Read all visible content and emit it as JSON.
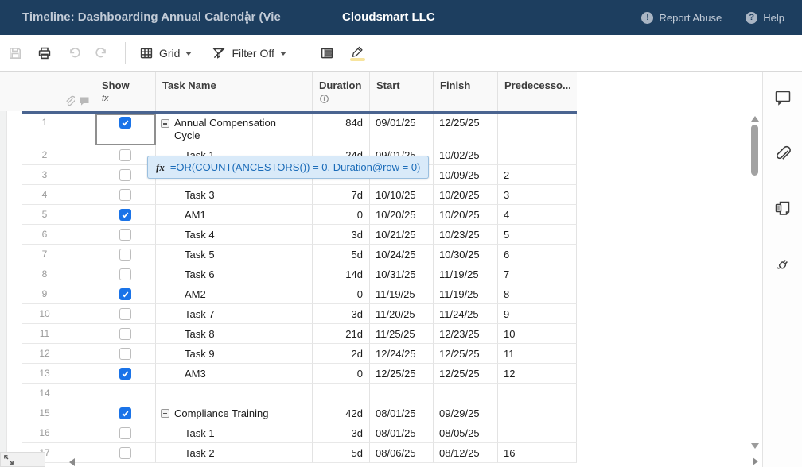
{
  "header": {
    "title": "Timeline: Dashboarding Annual Calendar (Vie",
    "company": "Cloudsmart LLC",
    "report_abuse_label": "Report Abuse",
    "report_abuse_glyph": "!",
    "help_label": "Help",
    "help_glyph": "?"
  },
  "toolbar": {
    "view_label": "Grid",
    "filter_label": "Filter Off"
  },
  "columns": {
    "show": "Show",
    "show_sub": "fx",
    "task": "Task Name",
    "duration": "Duration",
    "start": "Start",
    "finish": "Finish",
    "predecessors": "Predecesso..."
  },
  "tooltip": {
    "fx": "fx",
    "formula": "=OR(COUNT(ANCESTORS()) = 0, Duration@row = 0)"
  },
  "selected_cell": {
    "row": "1",
    "column": "Show"
  },
  "rows": [
    {
      "num": "1",
      "checked": true,
      "parent": true,
      "indent": 0,
      "task": "Annual Compensation Cycle",
      "duration": "84d",
      "start": "09/01/25",
      "finish": "12/25/25",
      "pred": "",
      "tall": true
    },
    {
      "num": "2",
      "checked": false,
      "parent": false,
      "indent": 1,
      "task": "Task 1",
      "duration": "24d",
      "start": "09/01/25",
      "finish": "10/02/25",
      "pred": ""
    },
    {
      "num": "3",
      "checked": false,
      "parent": false,
      "indent": 1,
      "task": "",
      "duration": "",
      "start": "",
      "finish": "10/09/25",
      "pred": "2"
    },
    {
      "num": "4",
      "checked": false,
      "parent": false,
      "indent": 1,
      "task": "Task 3",
      "duration": "7d",
      "start": "10/10/25",
      "finish": "10/20/25",
      "pred": "3"
    },
    {
      "num": "5",
      "checked": true,
      "parent": false,
      "indent": 1,
      "task": "AM1",
      "duration": "0",
      "start": "10/20/25",
      "finish": "10/20/25",
      "pred": "4"
    },
    {
      "num": "6",
      "checked": false,
      "parent": false,
      "indent": 1,
      "task": "Task 4",
      "duration": "3d",
      "start": "10/21/25",
      "finish": "10/23/25",
      "pred": "5"
    },
    {
      "num": "7",
      "checked": false,
      "parent": false,
      "indent": 1,
      "task": "Task 5",
      "duration": "5d",
      "start": "10/24/25",
      "finish": "10/30/25",
      "pred": "6"
    },
    {
      "num": "8",
      "checked": false,
      "parent": false,
      "indent": 1,
      "task": "Task 6",
      "duration": "14d",
      "start": "10/31/25",
      "finish": "11/19/25",
      "pred": "7"
    },
    {
      "num": "9",
      "checked": true,
      "parent": false,
      "indent": 1,
      "task": "AM2",
      "duration": "0",
      "start": "11/19/25",
      "finish": "11/19/25",
      "pred": "8"
    },
    {
      "num": "10",
      "checked": false,
      "parent": false,
      "indent": 1,
      "task": "Task 7",
      "duration": "3d",
      "start": "11/20/25",
      "finish": "11/24/25",
      "pred": "9"
    },
    {
      "num": "11",
      "checked": false,
      "parent": false,
      "indent": 1,
      "task": "Task 8",
      "duration": "21d",
      "start": "11/25/25",
      "finish": "12/23/25",
      "pred": "10"
    },
    {
      "num": "12",
      "checked": false,
      "parent": false,
      "indent": 1,
      "task": "Task 9",
      "duration": "2d",
      "start": "12/24/25",
      "finish": "12/25/25",
      "pred": "11"
    },
    {
      "num": "13",
      "checked": true,
      "parent": false,
      "indent": 1,
      "task": "AM3",
      "duration": "0",
      "start": "12/25/25",
      "finish": "12/25/25",
      "pred": "12"
    },
    {
      "num": "14",
      "checked": null,
      "parent": false,
      "indent": 0,
      "task": "",
      "duration": "",
      "start": "",
      "finish": "",
      "pred": ""
    },
    {
      "num": "15",
      "checked": true,
      "parent": true,
      "indent": 0,
      "task": "Compliance Training",
      "duration": "42d",
      "start": "08/01/25",
      "finish": "09/29/25",
      "pred": ""
    },
    {
      "num": "16",
      "checked": false,
      "parent": false,
      "indent": 1,
      "task": "Task 1",
      "duration": "3d",
      "start": "08/01/25",
      "finish": "08/05/25",
      "pred": ""
    },
    {
      "num": "17",
      "checked": false,
      "parent": false,
      "indent": 1,
      "task": "Task 2",
      "duration": "5d",
      "start": "08/06/25",
      "finish": "08/12/25",
      "pred": "16"
    }
  ],
  "icons": {
    "topbar": [
      "kebab-menu",
      "exclamation-circle",
      "question-circle"
    ],
    "toolbar": [
      "save",
      "print",
      "undo",
      "redo",
      "grid-view",
      "caret-down",
      "filter-off",
      "caret-down",
      "row-report",
      "highlight-pencil"
    ],
    "grid_header": [
      "paperclip",
      "comment",
      "formula-fx",
      "info-circle"
    ],
    "sidebar": [
      "conversations",
      "attachments",
      "proofs",
      "connections"
    ],
    "scroll": [
      "arrow-up",
      "arrow-down",
      "arrow-left",
      "arrow-right",
      "expand"
    ]
  },
  "colors": {
    "topbar_bg": "#1d3e5f",
    "checkbox_blue": "#1a73e8",
    "grid_top_border": "#4a6490",
    "tooltip_bg": "#d9eaf9",
    "tooltip_border": "#9abfdf",
    "formula_link": "#1a6bb8",
    "highlight_yellow": "#f7e49e"
  }
}
